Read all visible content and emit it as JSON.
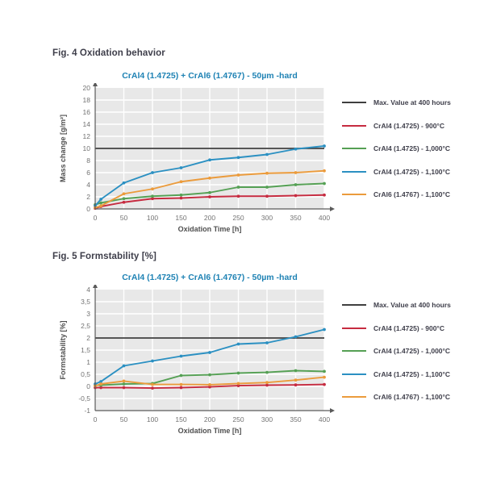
{
  "chart_data": [
    {
      "type": "line",
      "figure_label": "Fig. 4 Oxidation behavior",
      "title": "CrAl4 (1.4725) + CrAl6 (1.4767) - 50µm -hard",
      "xlabel": "Oxidation Time [h]",
      "ylabel": "Mass change [g/m²]",
      "xlim": [
        0,
        400
      ],
      "ylim": [
        0,
        20
      ],
      "xticks": [
        0,
        50,
        100,
        150,
        200,
        250,
        300,
        350,
        400
      ],
      "ytick_values": [
        0,
        2,
        4,
        6,
        8,
        10,
        12,
        14,
        16,
        18,
        20
      ],
      "ytick_labels": [
        "0",
        "2",
        "4",
        "6",
        "8",
        "10",
        "12",
        "14",
        "16",
        "18",
        "20"
      ],
      "x": [
        0,
        10,
        50,
        100,
        150,
        200,
        250,
        300,
        350,
        400
      ],
      "grid": true,
      "legend_position": "right",
      "plot_bg": "#e8e8e8",
      "max_line": {
        "label": "Max. Value at 400 hours",
        "value": 10,
        "color": "#3f3f3f"
      },
      "series": [
        {
          "name": "CrAl4 (1.4725) - 900°C",
          "color": "#c62b40",
          "values": [
            0.1,
            0.4,
            1.1,
            1.7,
            1.8,
            2.0,
            2.1,
            2.1,
            2.2,
            2.3
          ]
        },
        {
          "name": "CrAl4 (1.4725) - 1,000°C",
          "color": "#55a054",
          "values": [
            0.7,
            1.0,
            1.7,
            2.1,
            2.3,
            2.7,
            3.6,
            3.6,
            4.0,
            4.2
          ]
        },
        {
          "name": "CrAl4 (1.4725) - 1,100°C",
          "color": "#2b90c2",
          "values": [
            0.5,
            1.6,
            4.3,
            6.0,
            6.8,
            8.1,
            8.5,
            9.0,
            9.9,
            10.4
          ]
        },
        {
          "name": "CrAl6 (1.4767) - 1,100°C",
          "color": "#eb9b3c",
          "values": [
            0.2,
            0.5,
            2.5,
            3.3,
            4.5,
            5.1,
            5.6,
            5.9,
            6.0,
            6.3
          ]
        }
      ]
    },
    {
      "type": "line",
      "figure_label": "Fig. 5 Formstability [%]",
      "title": "CrAl4 (1.4725) + CrAl6 (1.4767) - 50µm -hard",
      "xlabel": "Oxidation Time [h]",
      "ylabel": "Formstability [%]",
      "xlim": [
        0,
        400
      ],
      "ylim": [
        -1,
        4
      ],
      "xticks": [
        0,
        50,
        100,
        150,
        200,
        250,
        300,
        350,
        400
      ],
      "ytick_values": [
        -1,
        -0.5,
        0,
        0.5,
        1,
        1.5,
        2,
        2.5,
        3,
        3.5,
        4
      ],
      "ytick_labels": [
        "-1",
        "-0,5",
        "0",
        "0,5",
        "1",
        "1,5",
        "2",
        "2,5",
        "3",
        "3,5",
        "4"
      ],
      "x": [
        0,
        10,
        50,
        100,
        150,
        200,
        250,
        300,
        350,
        400
      ],
      "grid": true,
      "legend_position": "right",
      "plot_bg": "#e8e8e8",
      "max_line": {
        "label": "Max. Value at 400 hours",
        "value": 2,
        "color": "#3f3f3f"
      },
      "series": [
        {
          "name": "CrAl4 (1.4725) - 900°C",
          "color": "#c62b40",
          "values": [
            -0.05,
            -0.05,
            -0.05,
            -0.07,
            -0.05,
            -0.02,
            0.03,
            0.05,
            0.06,
            0.08
          ]
        },
        {
          "name": "CrAl4 (1.4725) - 1,000°C",
          "color": "#55a054",
          "values": [
            0.05,
            0.05,
            0.1,
            0.12,
            0.45,
            0.48,
            0.55,
            0.58,
            0.65,
            0.62
          ]
        },
        {
          "name": "CrAl4 (1.4725) - 1,100°C",
          "color": "#2b90c2",
          "values": [
            0.1,
            0.2,
            0.85,
            1.05,
            1.25,
            1.4,
            1.75,
            1.8,
            2.05,
            2.35
          ]
        },
        {
          "name": "CrAl6 (1.4767) - 1,100°C",
          "color": "#eb9b3c",
          "values": [
            0.02,
            0.1,
            0.22,
            0.08,
            0.08,
            0.07,
            0.12,
            0.16,
            0.26,
            0.38
          ]
        }
      ]
    }
  ]
}
